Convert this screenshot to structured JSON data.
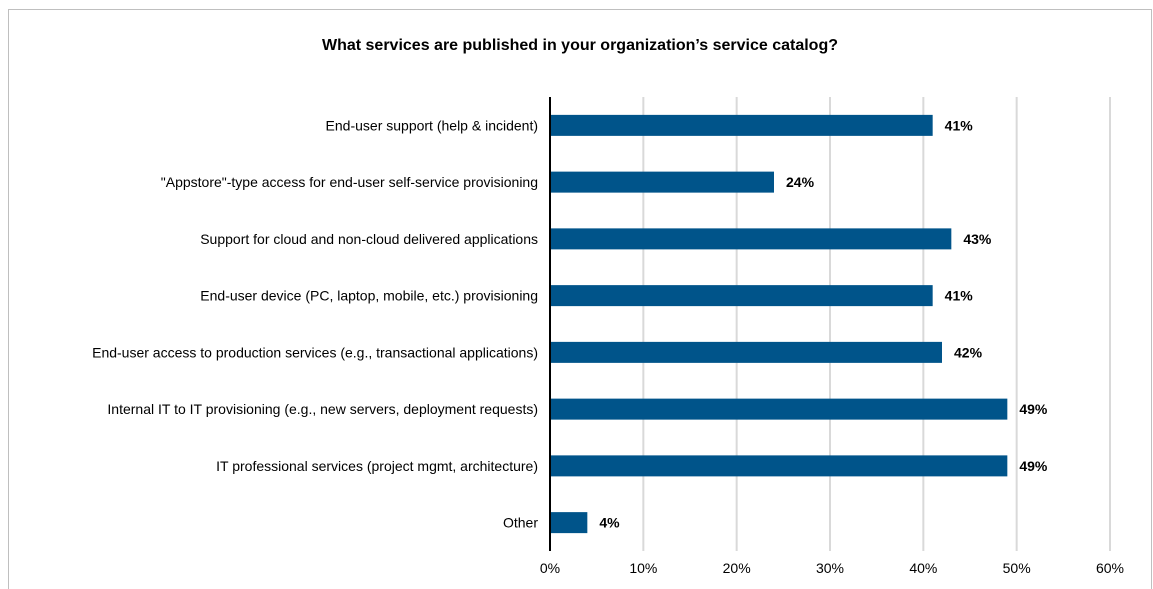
{
  "chart_data": {
    "type": "bar",
    "orientation": "horizontal",
    "title": "What services are published in your organization’s service catalog?",
    "categories": [
      "End-user support (help & incident)",
      "\"Appstore\"-type access for end-user self-service provisioning",
      "Support for cloud and non-cloud delivered applications",
      "End-user device (PC, laptop, mobile, etc.) provisioning",
      "End-user access to production services (e.g., transactional applications)",
      "Internal IT to IT provisioning (e.g., new servers, deployment requests)",
      "IT professional services (project mgmt, architecture)",
      "Other"
    ],
    "values": [
      41,
      24,
      43,
      41,
      42,
      49,
      49,
      4
    ],
    "value_labels": [
      "41%",
      "24%",
      "43%",
      "41%",
      "42%",
      "49%",
      "49%",
      "4%"
    ],
    "xlim": [
      0,
      60
    ],
    "x_ticks": [
      0,
      10,
      20,
      30,
      40,
      50,
      60
    ],
    "x_tick_labels": [
      "0%",
      "10%",
      "20%",
      "30%",
      "40%",
      "50%",
      "60%"
    ],
    "xlabel": "",
    "ylabel": "",
    "grid": "vertical",
    "legend": "none",
    "bar_color": "#00548a",
    "grid_color": "#d9d9d9"
  }
}
